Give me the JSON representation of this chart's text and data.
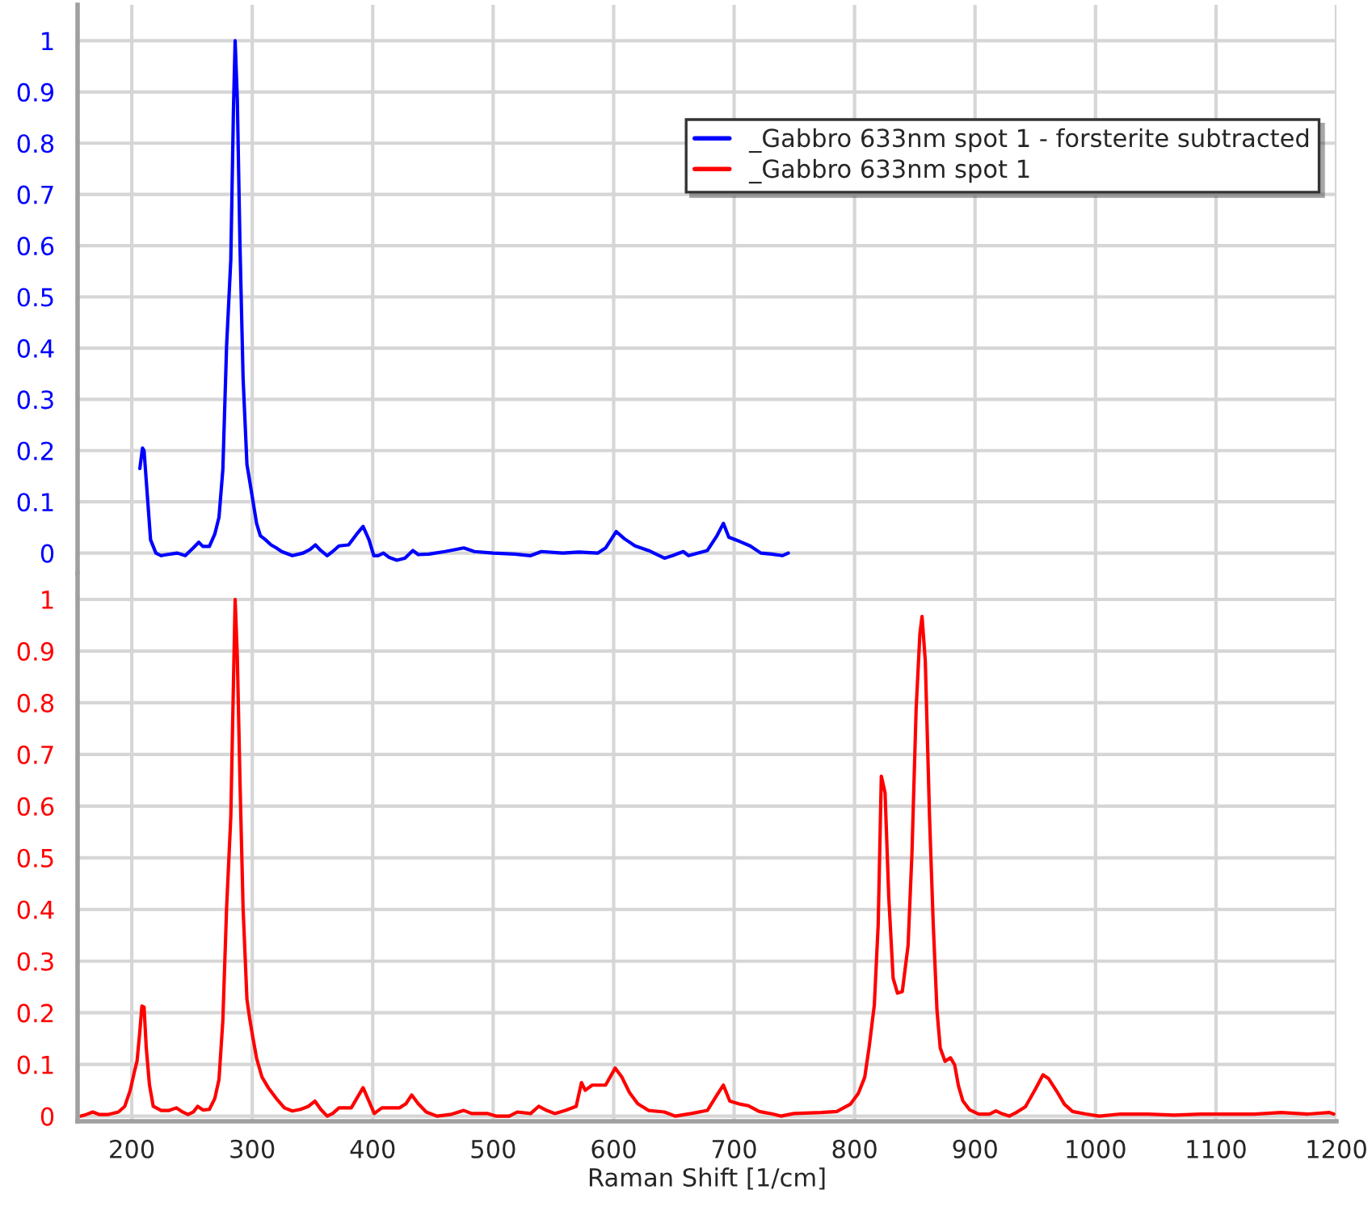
{
  "chart_data": [
    {
      "type": "line",
      "series": [
        {
          "name": "_Gabbro 633nm spot 1 - forsterite subtracted",
          "color": "#0000ff",
          "x": [
            206.7,
            208.9,
            210.2,
            213.3,
            215.6,
            220,
            224.4,
            229,
            237.8,
            244.4,
            251,
            255.6,
            259,
            264.4,
            268.9,
            272.4,
            275.6,
            278.7,
            282.2,
            284.4,
            285.8,
            287.6,
            289.8,
            292.4,
            295.6,
            297.8,
            300,
            303.6,
            306.7,
            311,
            315.6,
            320,
            324.4,
            333.3,
            342.2,
            348,
            352.4,
            356.9,
            362.2,
            366.7,
            372,
            380,
            386.7,
            392,
            396.9,
            400.9,
            404.4,
            408.9,
            413.3,
            420,
            426.7,
            433.3,
            437.8,
            446.7,
            460,
            475.6,
            484.4,
            500,
            517.8,
            531.1,
            540,
            557.8,
            571.1,
            586.7,
            593.3,
            602.2,
            608.9,
            617.8,
            628.9,
            642.2,
            648.9,
            657.8,
            662.2,
            677.8,
            685.8,
            691.1,
            695.6,
            704.4,
            713.3,
            722.2,
            731.1,
            740,
            745
          ],
          "values": [
            0.165,
            0.205,
            0.2,
            0.1,
            0.026,
            0,
            -0.005,
            -0.003,
            0,
            -0.005,
            0.01,
            0.021,
            0.013,
            0.013,
            0.037,
            0.07,
            0.163,
            0.404,
            0.572,
            0.866,
            1.0,
            0.887,
            0.603,
            0.341,
            0.173,
            0.142,
            0.11,
            0.058,
            0.034,
            0.026,
            0.016,
            0.01,
            0.003,
            -0.005,
            0,
            0.007,
            0.016,
            0.005,
            -0.005,
            0.003,
            0.014,
            0.016,
            0.037,
            0.052,
            0.026,
            -0.005,
            -0.005,
            0,
            -0.008,
            -0.014,
            -0.01,
            0.005,
            -0.003,
            -0.002,
            0.003,
            0.01,
            0.003,
            0,
            -0.002,
            -0.005,
            0.003,
            0,
            0.002,
            0,
            0.01,
            0.042,
            0.028,
            0.014,
            0.005,
            -0.01,
            -0.005,
            0.003,
            -0.005,
            0.005,
            0.034,
            0.058,
            0.031,
            0.023,
            0.014,
            0,
            -0.002,
            -0.005,
            0
          ]
        }
      ],
      "xlim": [
        155,
        1200
      ],
      "xticks": [
        200,
        300,
        400,
        500,
        600,
        700,
        800,
        900,
        1000,
        1100,
        1200
      ],
      "ylim": [
        -0.04,
        1.07
      ],
      "yticks": [
        0,
        0.1,
        0.2,
        0.3,
        0.4,
        0.5,
        0.6,
        0.7,
        0.8,
        0.9,
        1
      ],
      "grid": true,
      "legend": "top right",
      "tick_labels": "y"
    },
    {
      "type": "line",
      "series": [
        {
          "name": "_Gabbro 633nm spot 1",
          "color": "#ff0000",
          "x": [
            157.8,
            162.2,
            167.6,
            173.3,
            180,
            188.9,
            194.2,
            198.7,
            202.2,
            204.4,
            206.7,
            208.4,
            210.2,
            212,
            214.7,
            217.8,
            224.4,
            231.1,
            236.9,
            242.2,
            246.7,
            251.1,
            254.7,
            259.1,
            264.4,
            268.9,
            272.4,
            275.6,
            278.7,
            282.2,
            284.4,
            285.8,
            287.6,
            289.8,
            292.4,
            295.6,
            297.8,
            300,
            303.6,
            308,
            313.3,
            320,
            326.7,
            333.3,
            340,
            346.7,
            352,
            356.9,
            362.2,
            366.7,
            372,
            382.2,
            386.7,
            392,
            396.9,
            401.3,
            407.6,
            422.2,
            427.6,
            432.4,
            437.8,
            444.4,
            453.3,
            464.4,
            475.6,
            482.2,
            495.6,
            502.2,
            513.3,
            520,
            531.1,
            537.8,
            544.4,
            551.1,
            560,
            568.9,
            573.3,
            576.4,
            582.2,
            593.3,
            601.3,
            606.7,
            613.3,
            620,
            628.9,
            642.2,
            651.1,
            664.4,
            677.8,
            685.8,
            691.1,
            696.4,
            705.3,
            712,
            720.9,
            732,
            738.7,
            749.8,
            772,
            785.3,
            796.4,
            803.1,
            808.4,
            812,
            816.4,
            819.6,
            822.2,
            825.3,
            828.4,
            832,
            835.6,
            839.6,
            844.4,
            847.6,
            851.1,
            854.2,
            856,
            858.7,
            862.2,
            865.3,
            868.4,
            871.1,
            875.1,
            879.6,
            883.1,
            886.2,
            889.8,
            895.6,
            903.1,
            912,
            917.3,
            923.1,
            928.4,
            934.2,
            941.8,
            949.8,
            956.4,
            960.9,
            967.6,
            974.2,
            980.9,
            992,
            1003.1,
            1020.9,
            1043.1,
            1065.3,
            1087.6,
            1109.8,
            1132,
            1154.2,
            1176.4,
            1194.2,
            1197.8
          ],
          "values": [
            0,
            0.003,
            0.008,
            0.003,
            0.003,
            0.008,
            0.019,
            0.05,
            0.086,
            0.107,
            0.164,
            0.213,
            0.211,
            0.133,
            0.06,
            0.019,
            0.011,
            0.011,
            0.016,
            0.008,
            0.003,
            0.008,
            0.019,
            0.012,
            0.013,
            0.034,
            0.071,
            0.185,
            0.402,
            0.579,
            0.838,
            1.0,
            0.89,
            0.651,
            0.402,
            0.226,
            0.19,
            0.159,
            0.112,
            0.076,
            0.055,
            0.034,
            0.016,
            0.01,
            0.013,
            0.019,
            0.029,
            0.013,
            0,
            0.005,
            0.016,
            0.016,
            0.034,
            0.055,
            0.029,
            0.005,
            0.016,
            0.016,
            0.024,
            0.041,
            0.024,
            0.008,
            0,
            0.003,
            0.011,
            0.005,
            0.005,
            0,
            0,
            0.008,
            0.005,
            0.019,
            0.011,
            0.005,
            0.011,
            0.019,
            0.065,
            0.05,
            0.06,
            0.06,
            0.093,
            0.076,
            0.045,
            0.024,
            0.011,
            0.008,
            0,
            0.005,
            0.011,
            0.041,
            0.06,
            0.029,
            0.023,
            0.02,
            0.009,
            0.004,
            0,
            0.005,
            0.007,
            0.009,
            0.023,
            0.044,
            0.075,
            0.132,
            0.215,
            0.371,
            0.658,
            0.626,
            0.423,
            0.267,
            0.238,
            0.241,
            0.33,
            0.507,
            0.788,
            0.933,
            0.967,
            0.881,
            0.58,
            0.371,
            0.205,
            0.132,
            0.106,
            0.113,
            0.099,
            0.059,
            0.03,
            0.012,
            0.004,
            0.004,
            0.01,
            0.004,
            0,
            0.007,
            0.018,
            0.051,
            0.08,
            0.073,
            0.049,
            0.023,
            0.009,
            0.004,
            0,
            0.004,
            0.004,
            0.002,
            0.004,
            0.004,
            0.004,
            0.007,
            0.004,
            0.007,
            0.004
          ]
        }
      ],
      "xlabel": "Raman Shift [1/cm]",
      "xlim": [
        155,
        1200
      ],
      "xticks": [
        200,
        300,
        400,
        500,
        600,
        700,
        800,
        900,
        1000,
        1100,
        1200
      ],
      "ylim": [
        -0.01,
        1.05
      ],
      "yticks": [
        0,
        0.1,
        0.2,
        0.3,
        0.4,
        0.5,
        0.6,
        0.7,
        0.8,
        0.9,
        1
      ],
      "grid": true
    }
  ]
}
